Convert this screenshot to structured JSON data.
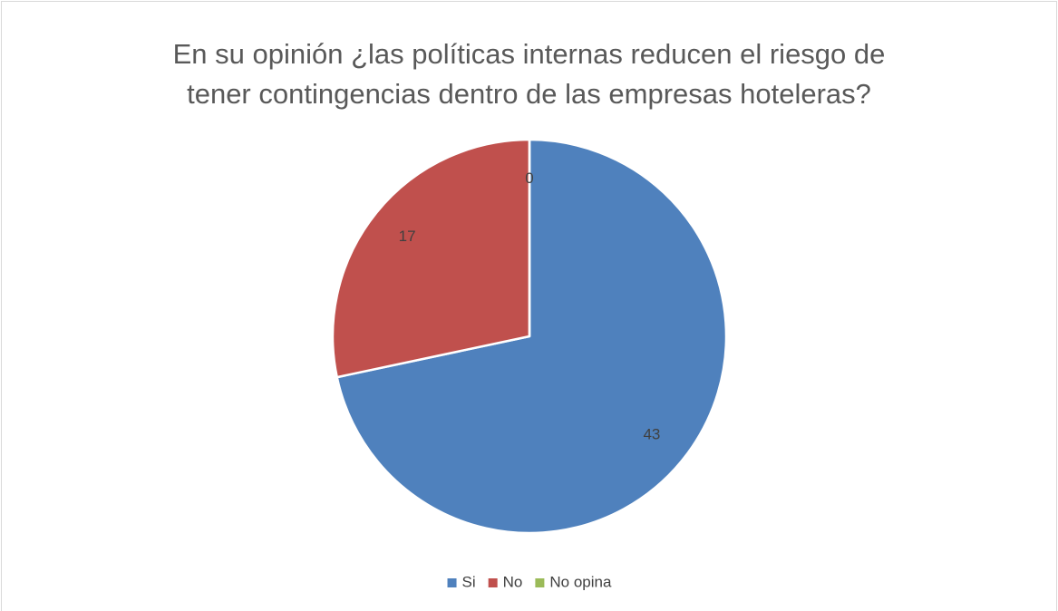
{
  "chart_data": {
    "type": "pie",
    "title": "En su opinión ¿las políticas internas reducen el riesgo de tener contingencias dentro de las empresas hoteleras?",
    "categories": [
      "Si",
      "No",
      "No opina"
    ],
    "values": [
      43,
      17,
      0
    ],
    "colors": [
      "#4f81bd",
      "#c0504d",
      "#9bbb59"
    ],
    "legend": "bottom"
  }
}
